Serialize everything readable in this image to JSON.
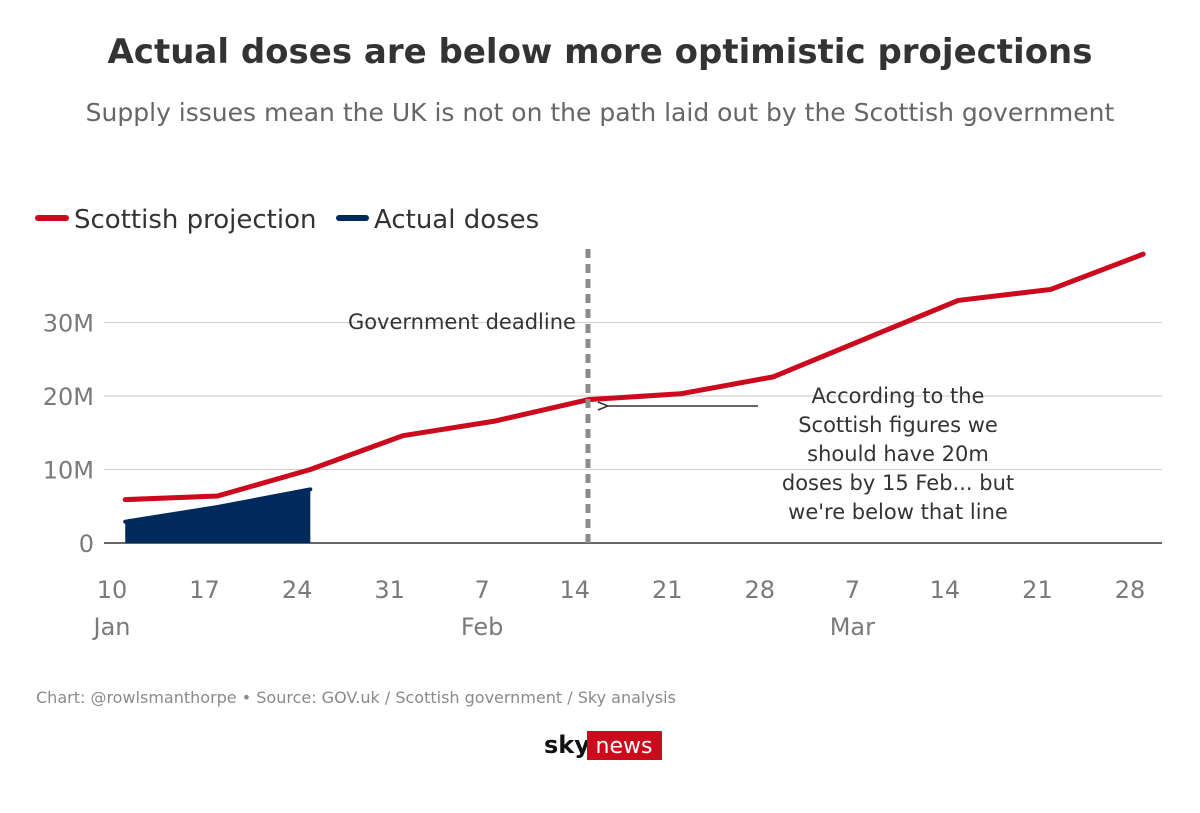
{
  "colors": {
    "projection": "#cc0a1e",
    "actual": "#002a5c",
    "grid": "#d4d4d4",
    "deadline": "#8c8c8c",
    "text": "#333333",
    "muted": "#7a7a7a",
    "logo_red": "#cc0a1e"
  },
  "logo": {
    "sky": "sky",
    "news": "news"
  },
  "chart_data": {
    "type": "line",
    "title": "Actual doses are below more optimistic projections",
    "subtitle": "Supply issues mean the UK is not on the path laid out by the Scottish government",
    "source": "Chart: @rowlsmanthorpe • Source: GOV.uk / Scottish government / Sky analysis",
    "legend_position": "top-left",
    "grid": "horizontal",
    "x_axis": {
      "start": "2021-01-10",
      "end": "2021-03-28",
      "ticks": [
        {
          "date": "2021-01-10",
          "label": "10",
          "month": "Jan"
        },
        {
          "date": "2021-01-17",
          "label": "17",
          "month": ""
        },
        {
          "date": "2021-01-24",
          "label": "24",
          "month": ""
        },
        {
          "date": "2021-01-31",
          "label": "31",
          "month": ""
        },
        {
          "date": "2021-02-07",
          "label": "7",
          "month": "Feb"
        },
        {
          "date": "2021-02-14",
          "label": "14",
          "month": ""
        },
        {
          "date": "2021-02-21",
          "label": "21",
          "month": ""
        },
        {
          "date": "2021-02-28",
          "label": "28",
          "month": ""
        },
        {
          "date": "2021-03-07",
          "label": "7",
          "month": "Mar"
        },
        {
          "date": "2021-03-14",
          "label": "14",
          "month": ""
        },
        {
          "date": "2021-03-21",
          "label": "21",
          "month": ""
        },
        {
          "date": "2021-03-28",
          "label": "28",
          "month": ""
        }
      ]
    },
    "y_axis": {
      "min": 0,
      "max": 40000000,
      "ticks": [
        {
          "value": 0,
          "label": "0"
        },
        {
          "value": 10000000,
          "label": "10M"
        },
        {
          "value": 20000000,
          "label": "20M"
        },
        {
          "value": 30000000,
          "label": "30M"
        }
      ]
    },
    "series": [
      {
        "name": "Scottish projection",
        "style": "line",
        "color": "#cc0a1e",
        "points": [
          {
            "x": "2021-01-11",
            "y": 5900000
          },
          {
            "x": "2021-01-18",
            "y": 6400000
          },
          {
            "x": "2021-01-25",
            "y": 10000000
          },
          {
            "x": "2021-02-01",
            "y": 14600000
          },
          {
            "x": "2021-02-08",
            "y": 16600000
          },
          {
            "x": "2021-02-15",
            "y": 19500000
          },
          {
            "x": "2021-02-22",
            "y": 20300000
          },
          {
            "x": "2021-03-01",
            "y": 22600000
          },
          {
            "x": "2021-03-08",
            "y": 27800000
          },
          {
            "x": "2021-03-15",
            "y": 33000000
          },
          {
            "x": "2021-03-22",
            "y": 34500000
          },
          {
            "x": "2021-03-29",
            "y": 39300000
          }
        ]
      },
      {
        "name": "Actual doses",
        "style": "area",
        "color": "#002a5c",
        "points": [
          {
            "x": "2021-01-11",
            "y": 2900000
          },
          {
            "x": "2021-01-18",
            "y": 4900000
          },
          {
            "x": "2021-01-25",
            "y": 7300000
          }
        ]
      }
    ],
    "annotations": [
      {
        "id": "deadline",
        "type": "vline",
        "x": "2021-02-15",
        "label": "Government deadline"
      },
      {
        "id": "note",
        "type": "text-arrow",
        "x": "2021-02-15",
        "y": 19500000,
        "lines": [
          "According to the",
          "Scottish figures we",
          "should have 20m",
          "doses by 15 Feb... but",
          "we're below that line"
        ]
      }
    ]
  }
}
